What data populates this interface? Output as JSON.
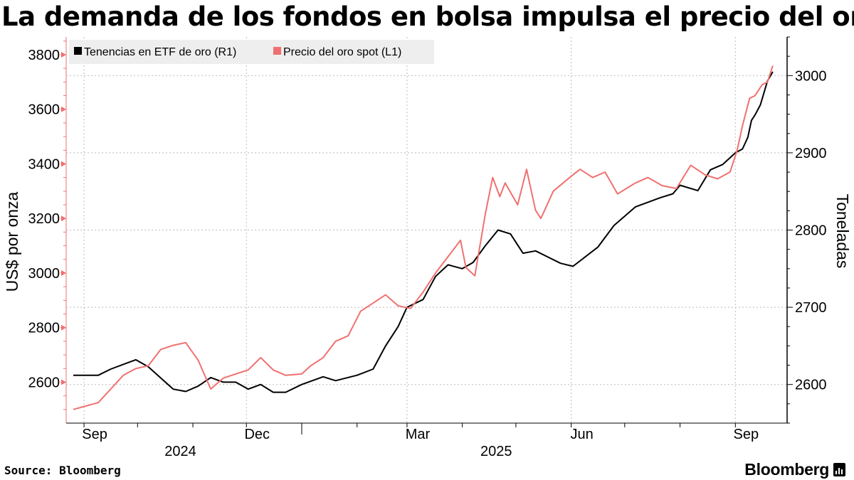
{
  "title": "La demanda de los fondos en bolsa impulsa el precio del oro",
  "source": "Source:  Bloomberg",
  "brand": "Bloomberg",
  "colors": {
    "etf": "#000000",
    "gold": "#f07070",
    "grid": "#bbbbbb",
    "legend_bg": "#eeeeee"
  },
  "chart_data": {
    "type": "line",
    "legend_position": "top-left",
    "grid": true,
    "x_ticks": [
      "Sep",
      "Dec",
      "Mar",
      "Jun",
      "Sep"
    ],
    "year_labels": [
      "2024",
      "2025"
    ],
    "y_left": {
      "label": "US$ por onza",
      "ticks": [
        2600,
        2800,
        3000,
        3200,
        3400,
        3600,
        3800
      ],
      "range": [
        2450,
        3865
      ]
    },
    "y_right": {
      "label": "Toneladas",
      "ticks": [
        2600,
        2700,
        2800,
        2900,
        3000
      ],
      "range": [
        2550,
        3050
      ]
    },
    "series": [
      {
        "name": "Tenencias en ETF de oro (R1)",
        "axis": "right",
        "x": [
          "2024-08-26",
          "2024-09-09",
          "2024-09-16",
          "2024-09-30",
          "2024-10-07",
          "2024-10-21",
          "2024-10-28",
          "2024-11-04",
          "2024-11-11",
          "2024-11-18",
          "2024-11-25",
          "2024-12-02",
          "2024-12-09",
          "2024-12-16",
          "2024-12-23",
          "2025-01-01",
          "2025-01-13",
          "2025-01-20",
          "2025-02-01",
          "2025-02-10",
          "2025-02-17",
          "2025-02-24",
          "2025-03-01",
          "2025-03-10",
          "2025-03-17",
          "2025-03-24",
          "2025-04-01",
          "2025-04-07",
          "2025-04-14",
          "2025-04-21",
          "2025-04-28",
          "2025-05-05",
          "2025-05-12",
          "2025-05-19",
          "2025-05-26",
          "2025-06-02",
          "2025-06-16",
          "2025-06-25",
          "2025-07-07",
          "2025-07-21",
          "2025-07-28",
          "2025-08-01",
          "2025-08-11",
          "2025-08-18",
          "2025-08-25",
          "2025-09-01",
          "2025-09-05",
          "2025-09-08",
          "2025-09-10",
          "2025-09-12",
          "2025-09-15",
          "2025-09-19",
          "2025-09-22"
        ],
        "values": [
          2612,
          2612,
          2620,
          2632,
          2623,
          2594,
          2591,
          2598,
          2609,
          2603,
          2603,
          2594,
          2600,
          2590,
          2590,
          2600,
          2610,
          2605,
          2612,
          2620,
          2650,
          2675,
          2700,
          2710,
          2740,
          2755,
          2750,
          2758,
          2780,
          2800,
          2795,
          2770,
          2773,
          2765,
          2757,
          2753,
          2778,
          2806,
          2830,
          2842,
          2847,
          2858,
          2851,
          2878,
          2885,
          2900,
          2905,
          2920,
          2942,
          2949,
          2962,
          2993,
          3005
        ]
      },
      {
        "name": "Precio del oro spot (L1)",
        "axis": "left",
        "x": [
          "2024-08-26",
          "2024-09-09",
          "2024-09-16",
          "2024-09-23",
          "2024-09-30",
          "2024-10-07",
          "2024-10-14",
          "2024-10-21",
          "2024-10-28",
          "2024-11-04",
          "2024-11-11",
          "2024-11-18",
          "2024-11-25",
          "2024-12-02",
          "2024-12-09",
          "2024-12-16",
          "2024-12-23",
          "2025-01-01",
          "2025-01-06",
          "2025-01-13",
          "2025-01-20",
          "2025-01-27",
          "2025-02-03",
          "2025-02-10",
          "2025-02-17",
          "2025-02-24",
          "2025-03-03",
          "2025-03-10",
          "2025-03-17",
          "2025-03-24",
          "2025-03-31",
          "2025-04-03",
          "2025-04-08",
          "2025-04-14",
          "2025-04-18",
          "2025-04-22",
          "2025-04-25",
          "2025-05-02",
          "2025-05-07",
          "2025-05-12",
          "2025-05-15",
          "2025-05-22",
          "2025-06-02",
          "2025-06-06",
          "2025-06-13",
          "2025-06-20",
          "2025-06-27",
          "2025-07-07",
          "2025-07-14",
          "2025-07-22",
          "2025-07-30",
          "2025-08-07",
          "2025-08-15",
          "2025-08-22",
          "2025-08-29",
          "2025-09-02",
          "2025-09-05",
          "2025-09-09",
          "2025-09-12",
          "2025-09-16",
          "2025-09-19",
          "2025-09-22"
        ],
        "values": [
          2500,
          2525,
          2575,
          2625,
          2650,
          2660,
          2720,
          2735,
          2745,
          2680,
          2575,
          2615,
          2630,
          2645,
          2690,
          2645,
          2625,
          2630,
          2660,
          2690,
          2750,
          2770,
          2860,
          2890,
          2920,
          2880,
          2870,
          2930,
          3000,
          3060,
          3120,
          3020,
          2990,
          3220,
          3350,
          3280,
          3330,
          3250,
          3380,
          3230,
          3200,
          3300,
          3360,
          3380,
          3350,
          3370,
          3290,
          3330,
          3350,
          3320,
          3310,
          3395,
          3360,
          3345,
          3370,
          3450,
          3540,
          3640,
          3650,
          3690,
          3700,
          3760
        ]
      }
    ]
  }
}
